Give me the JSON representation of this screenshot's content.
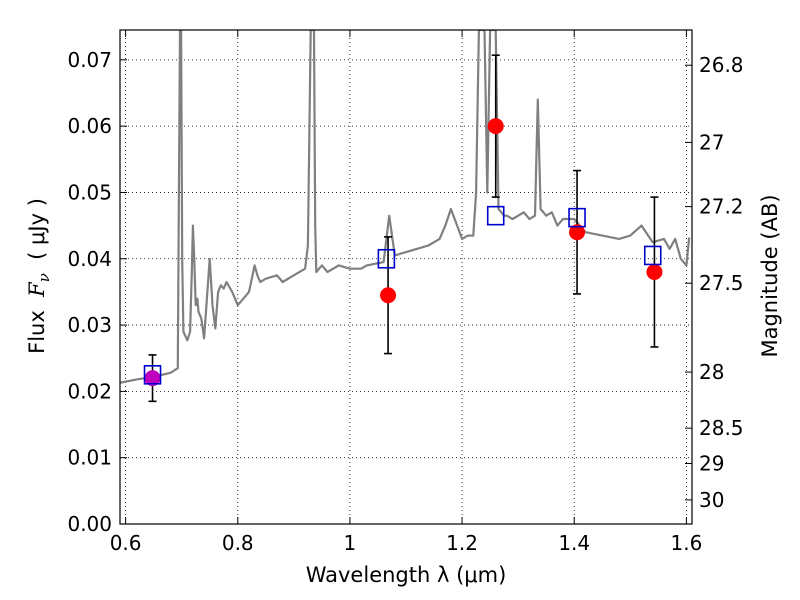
{
  "chart_data": {
    "type": "scatter",
    "xlabel": "Wavelength  λ (μm)",
    "ylabel_parts": {
      "prefix": "Flux  ",
      "symbol": "F",
      "subscript": "ν",
      "unit": "  ( μJy )"
    },
    "right_ylabel": "Magnitude (AB)",
    "xlim": [
      0.59,
      1.61
    ],
    "ylim": [
      0.0,
      0.0745
    ],
    "x_ticks": [
      0.6,
      0.8,
      1.0,
      1.2,
      1.4,
      1.6
    ],
    "x_tick_labels": [
      "0.6",
      "0.8",
      "1",
      "1.2",
      "1.4",
      "1.6"
    ],
    "y_ticks": [
      0.0,
      0.01,
      0.02,
      0.03,
      0.04,
      0.05,
      0.06,
      0.07
    ],
    "y_tick_labels": [
      "0.00",
      "0.01",
      "0.02",
      "0.03",
      "0.04",
      "0.05",
      "0.06",
      "0.07"
    ],
    "right_ticks_mag": [
      26.8,
      27,
      27.2,
      27.5,
      28,
      28.5,
      29,
      30
    ],
    "right_tick_labels": [
      "26.8",
      "27",
      "27.2",
      "27.5",
      "28",
      "28.5",
      "29",
      "30"
    ],
    "grid": true,
    "colors": {
      "spectrum": "#808080",
      "observed": "#ff0000",
      "observed_first": "#bf00bf",
      "model": "#0000cc",
      "errorbar": "#000000"
    },
    "spectrum": {
      "x": [
        0.59,
        0.62,
        0.65,
        0.68,
        0.693,
        0.695,
        0.697,
        0.699,
        0.701,
        0.703,
        0.71,
        0.715,
        0.718,
        0.72,
        0.722,
        0.725,
        0.728,
        0.73,
        0.735,
        0.74,
        0.745,
        0.75,
        0.755,
        0.76,
        0.765,
        0.77,
        0.775,
        0.78,
        0.79,
        0.8,
        0.82,
        0.83,
        0.835,
        0.84,
        0.85,
        0.87,
        0.88,
        0.9,
        0.92,
        0.925,
        0.93,
        0.932,
        0.934,
        0.936,
        0.938,
        0.94,
        0.945,
        0.95,
        0.96,
        0.98,
        1.0,
        1.02,
        1.03,
        1.06,
        1.07,
        1.08,
        1.1,
        1.12,
        1.14,
        1.15,
        1.16,
        1.17,
        1.18,
        1.2,
        1.21,
        1.22,
        1.225,
        1.23,
        1.24,
        1.245,
        1.25,
        1.26,
        1.265,
        1.27,
        1.275,
        1.28,
        1.29,
        1.3,
        1.31,
        1.32,
        1.33,
        1.335,
        1.34,
        1.35,
        1.36,
        1.37,
        1.38,
        1.4,
        1.42,
        1.45,
        1.48,
        1.5,
        1.52,
        1.54,
        1.56,
        1.57,
        1.58,
        1.59,
        1.6,
        1.605
      ],
      "y": [
        0.0213,
        0.0218,
        0.0222,
        0.0228,
        0.0235,
        0.05,
        0.0745,
        0.0745,
        0.04,
        0.029,
        0.0277,
        0.029,
        0.038,
        0.045,
        0.041,
        0.033,
        0.034,
        0.032,
        0.031,
        0.028,
        0.034,
        0.04,
        0.033,
        0.0295,
        0.035,
        0.036,
        0.0355,
        0.0365,
        0.035,
        0.033,
        0.035,
        0.039,
        0.0375,
        0.0365,
        0.037,
        0.0375,
        0.0365,
        0.0375,
        0.0385,
        0.042,
        0.0745,
        0.0745,
        0.0745,
        0.0745,
        0.045,
        0.038,
        0.0385,
        0.039,
        0.038,
        0.039,
        0.0385,
        0.0385,
        0.039,
        0.0395,
        0.0465,
        0.0405,
        0.041,
        0.0415,
        0.042,
        0.0425,
        0.043,
        0.045,
        0.0475,
        0.043,
        0.0435,
        0.0435,
        0.05,
        0.0745,
        0.0745,
        0.05,
        0.0745,
        0.0745,
        0.0475,
        0.047,
        0.0465,
        0.0465,
        0.046,
        0.0465,
        0.047,
        0.046,
        0.0465,
        0.064,
        0.0475,
        0.0465,
        0.047,
        0.045,
        0.046,
        0.046,
        0.044,
        0.0435,
        0.043,
        0.0435,
        0.045,
        0.0425,
        0.043,
        0.0415,
        0.043,
        0.04,
        0.039,
        0.0432
      ]
    },
    "observed": {
      "x": [
        0.648,
        1.068,
        1.26,
        1.405,
        1.543
      ],
      "y": [
        0.022,
        0.0345,
        0.06,
        0.044,
        0.038
      ],
      "yerr": [
        0.0035,
        0.0088,
        0.0107,
        0.0093,
        0.0113
      ]
    },
    "model": {
      "x": [
        0.648,
        1.065,
        1.26,
        1.405,
        1.54
      ],
      "y": [
        0.0225,
        0.04,
        0.0465,
        0.0462,
        0.0405
      ]
    }
  }
}
